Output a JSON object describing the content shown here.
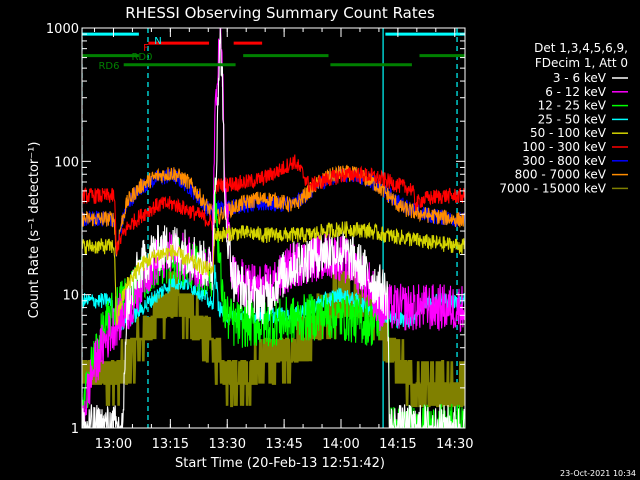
{
  "chart_data": {
    "type": "line",
    "title": "RHESSI Observing Summary Count Rates",
    "xlabel": "Start Time (20-Feb-13 12:51:42)",
    "ylabel": "Count Rate (s⁻¹ detector⁻¹)",
    "x_unit": "minutes from 12:51:42 start",
    "y_scale": "log",
    "ylim": [
      1,
      1000
    ],
    "xlim": [
      0,
      101
    ],
    "y_ticks": [
      {
        "value": 1,
        "label": "1"
      },
      {
        "value": 10,
        "label": "10"
      },
      {
        "value": 100,
        "label": "100"
      },
      {
        "value": 1000,
        "label": "1000"
      }
    ],
    "x_ticks": [
      {
        "value": 8.3,
        "label": "13:00"
      },
      {
        "value": 23.3,
        "label": "13:15"
      },
      {
        "value": 38.3,
        "label": "13:30"
      },
      {
        "value": 53.3,
        "label": "13:45"
      },
      {
        "value": 68.3,
        "label": "14:00"
      },
      {
        "value": 83.3,
        "label": "14:15"
      },
      {
        "value": 98.3,
        "label": "14:30"
      }
    ],
    "legend": {
      "placement": "right",
      "header": [
        "Det 1,3,4,5,6,9,",
        "FDecim 1, Att 0"
      ]
    },
    "series": [
      {
        "name": "3 - 6 keV",
        "color": "#ffffff",
        "x": [
          0,
          11,
          12,
          16,
          20,
          24,
          28,
          32,
          34.5,
          35.5,
          36.5,
          37.5,
          39,
          40,
          44,
          48,
          52,
          56,
          60,
          64,
          68,
          72,
          76,
          80.5,
          81,
          84,
          91,
          92,
          101
        ],
        "y": [
          1,
          1,
          9,
          17,
          22,
          23,
          21,
          17,
          15,
          100,
          780,
          42,
          20,
          13,
          10,
          9,
          13,
          17,
          19,
          21,
          21,
          18,
          13,
          10,
          1,
          1,
          1,
          1,
          1
        ]
      },
      {
        "name": "6 - 12 keV",
        "color": "#ff00ff",
        "x": [
          0,
          14,
          16,
          20,
          24,
          28,
          32,
          34.5,
          35.5,
          36.5,
          37.5,
          39,
          40,
          44,
          48,
          52,
          56,
          60,
          64,
          68,
          72,
          76,
          78
        ],
        "y": [
          1,
          9,
          14,
          18,
          20,
          19,
          16,
          15,
          300,
          820,
          60,
          20,
          13,
          12,
          11,
          13,
          17,
          18,
          20,
          19,
          16,
          12,
          8
        ]
      },
      {
        "name": "12 - 25 keV",
        "color": "#00ff00",
        "x": [
          0,
          12,
          16,
          20,
          24,
          28,
          32,
          34.5,
          35,
          36,
          37,
          38,
          40,
          48,
          56,
          64,
          72,
          78,
          80.5,
          81,
          101
        ],
        "y": [
          1,
          10,
          14,
          17,
          18,
          17,
          15,
          14,
          60,
          22,
          9,
          7,
          6,
          6,
          6.5,
          7,
          6.5,
          6,
          10,
          1,
          1
        ]
      },
      {
        "name": "25 - 50 keV",
        "color": "#00ffff",
        "x": [
          0,
          7,
          10,
          14,
          20,
          24,
          28,
          32,
          34.5,
          35,
          36,
          38,
          44,
          50,
          54,
          56,
          60,
          64,
          68,
          72,
          76,
          80,
          82,
          87,
          90,
          94,
          101
        ],
        "y": [
          9,
          9,
          6,
          7,
          10,
          12.5,
          12,
          10,
          8,
          15,
          8,
          7,
          7,
          7,
          7,
          7,
          8,
          9,
          10,
          9,
          8,
          7,
          6.5,
          6.5,
          8.5,
          9,
          9
        ]
      },
      {
        "name": "50 - 100 keV",
        "color": "#d4d400",
        "x": [
          0,
          8.5,
          9,
          12,
          16,
          20,
          24,
          28,
          32,
          34.5,
          35,
          40,
          44,
          48,
          52,
          56,
          60,
          64,
          68,
          72,
          76,
          80,
          84,
          87,
          90,
          95,
          101
        ],
        "y": [
          23,
          23,
          6,
          12,
          17,
          20,
          21,
          18,
          16,
          15,
          28,
          29,
          29,
          28,
          28,
          28,
          28,
          30,
          31,
          31,
          30,
          28,
          27,
          26,
          25,
          24,
          23
        ]
      },
      {
        "name": "100 - 300 keV",
        "color": "#ff0000",
        "x": [
          0,
          8.5,
          9,
          12,
          16,
          20,
          24,
          28,
          32,
          34.5,
          35,
          38,
          44,
          48,
          52,
          56,
          60,
          64,
          68,
          72,
          76,
          80,
          84,
          87,
          88,
          90,
          95,
          101
        ],
        "y": [
          55,
          55,
          22,
          32,
          40,
          47,
          48,
          43,
          38,
          34,
          65,
          67,
          70,
          75,
          85,
          100,
          65,
          72,
          78,
          80,
          78,
          72,
          65,
          62,
          48,
          52,
          55,
          55
        ]
      },
      {
        "name": "300 - 800 keV",
        "color": "#0000ff",
        "x": [
          0,
          8.5,
          9,
          12,
          16,
          20,
          24,
          28,
          32,
          34.5,
          35,
          40,
          44,
          48,
          52,
          56,
          60,
          64,
          68,
          72,
          76,
          80,
          84,
          87,
          90,
          95,
          101
        ],
        "y": [
          37,
          37,
          20,
          48,
          65,
          75,
          78,
          65,
          48,
          40,
          44,
          46,
          47,
          48,
          48,
          48,
          58,
          72,
          80,
          79,
          72,
          58,
          48,
          44,
          40,
          38,
          36
        ]
      },
      {
        "name": "800 - 7000 keV",
        "color": "#ff8c00",
        "x": [
          0,
          8.5,
          9,
          12,
          16,
          20,
          24,
          28,
          32,
          34.5,
          35,
          38,
          42,
          46,
          50,
          54,
          56,
          60,
          64,
          68,
          72,
          76,
          80,
          84,
          87,
          90,
          95,
          101
        ],
        "y": [
          37,
          37,
          20,
          50,
          67,
          78,
          82,
          70,
          50,
          40,
          37,
          42,
          48,
          52,
          52,
          48,
          46,
          60,
          75,
          82,
          80,
          72,
          58,
          45,
          42,
          40,
          38,
          36
        ]
      },
      {
        "name": "7000 - 15000 keV",
        "color": "#808000",
        "x": [
          0,
          10,
          12,
          14,
          18,
          22,
          24,
          28,
          32,
          34.5,
          36,
          38,
          40,
          44,
          48,
          52,
          56,
          60,
          64,
          68,
          72,
          76,
          80,
          84,
          88,
          90,
          95,
          101
        ],
        "y": [
          2.5,
          2.5,
          3,
          4,
          6,
          8.5,
          9.5,
          7.5,
          5,
          4,
          3,
          2.5,
          2.5,
          2.5,
          3,
          3.5,
          4,
          5,
          7,
          9,
          9.5,
          7.5,
          5,
          3,
          2,
          2,
          2,
          2
        ]
      }
    ],
    "state_bars": [
      {
        "label": "N",
        "color": "#00ffff",
        "level": 900,
        "segments": [
          [
            0,
            15
          ],
          [
            80,
            101
          ]
        ]
      },
      {
        "label": "F",
        "color": "#ff0000",
        "level": 770,
        "segments": [
          [
            17.5,
            33.5
          ],
          [
            40,
            47.5
          ]
        ]
      },
      {
        "label": "RD0",
        "color": "#008000",
        "level": 620,
        "segments": [
          [
            0,
            15
          ],
          [
            42.5,
            65
          ],
          [
            89,
            101
          ]
        ]
      },
      {
        "label": "RD6",
        "color": "#008000",
        "level": 530,
        "segments": [
          [
            11,
            40.5
          ],
          [
            65.5,
            87
          ]
        ]
      }
    ],
    "vertical_markers": [
      {
        "x": 0,
        "color": "#00ffff",
        "style": "dashed"
      },
      {
        "x": 17.4,
        "color": "#00ffff",
        "style": "dashed"
      },
      {
        "x": 79.4,
        "color": "#00ffff",
        "style": "solid"
      },
      {
        "x": 98.9,
        "color": "#00ffff",
        "style": "dashed"
      }
    ]
  },
  "footer": {
    "date": "23-Oct-2021 10:34"
  }
}
